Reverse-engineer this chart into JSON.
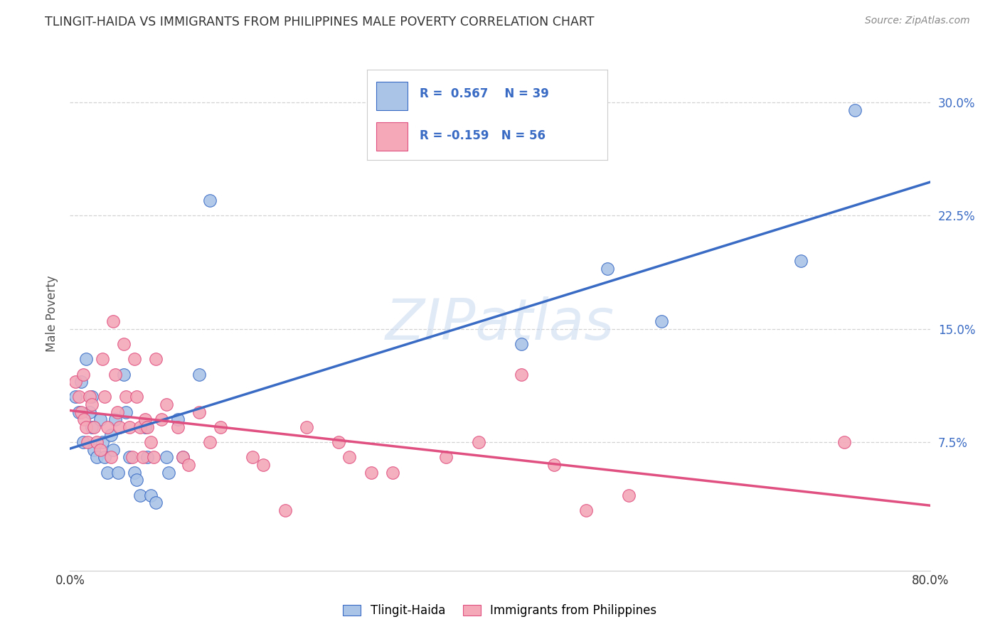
{
  "title": "TLINGIT-HAIDA VS IMMIGRANTS FROM PHILIPPINES MALE POVERTY CORRELATION CHART",
  "source": "Source: ZipAtlas.com",
  "ylabel": "Male Poverty",
  "xlim": [
    0.0,
    0.8
  ],
  "ylim": [
    -0.01,
    0.33
  ],
  "yticks_right": [
    0.075,
    0.15,
    0.225,
    0.3
  ],
  "ytick_right_labels": [
    "7.5%",
    "15.0%",
    "22.5%",
    "30.0%"
  ],
  "background_color": "#ffffff",
  "grid_color": "#c8c8c8",
  "series1_color": "#aac4e8",
  "series2_color": "#f4a8b8",
  "line1_color": "#3a6bc4",
  "line2_color": "#e05080",
  "R1": 0.567,
  "N1": 39,
  "R2": -0.159,
  "N2": 56,
  "legend_label1": "Tlingit-Haida",
  "legend_label2": "Immigrants from Philippines",
  "tlingit_x": [
    0.005,
    0.008,
    0.01,
    0.012,
    0.015,
    0.018,
    0.02,
    0.02,
    0.022,
    0.025,
    0.028,
    0.03,
    0.032,
    0.035,
    0.038,
    0.04,
    0.042,
    0.045,
    0.05,
    0.052,
    0.055,
    0.06,
    0.062,
    0.065,
    0.07,
    0.072,
    0.075,
    0.08,
    0.09,
    0.092,
    0.1,
    0.105,
    0.12,
    0.13,
    0.42,
    0.5,
    0.55,
    0.68,
    0.73
  ],
  "tlingit_y": [
    0.105,
    0.095,
    0.115,
    0.075,
    0.13,
    0.095,
    0.105,
    0.085,
    0.07,
    0.065,
    0.09,
    0.075,
    0.065,
    0.055,
    0.08,
    0.07,
    0.09,
    0.055,
    0.12,
    0.095,
    0.065,
    0.055,
    0.05,
    0.04,
    0.085,
    0.065,
    0.04,
    0.035,
    0.065,
    0.055,
    0.09,
    0.065,
    0.12,
    0.235,
    0.14,
    0.19,
    0.155,
    0.195,
    0.295
  ],
  "phil_x": [
    0.005,
    0.008,
    0.01,
    0.012,
    0.013,
    0.015,
    0.016,
    0.018,
    0.02,
    0.022,
    0.025,
    0.028,
    0.03,
    0.032,
    0.035,
    0.038,
    0.04,
    0.042,
    0.044,
    0.046,
    0.05,
    0.052,
    0.055,
    0.058,
    0.06,
    0.062,
    0.065,
    0.068,
    0.07,
    0.072,
    0.075,
    0.078,
    0.08,
    0.085,
    0.09,
    0.1,
    0.105,
    0.11,
    0.12,
    0.13,
    0.14,
    0.17,
    0.18,
    0.2,
    0.22,
    0.25,
    0.26,
    0.28,
    0.3,
    0.35,
    0.38,
    0.42,
    0.45,
    0.48,
    0.52,
    0.72
  ],
  "phil_y": [
    0.115,
    0.105,
    0.095,
    0.12,
    0.09,
    0.085,
    0.075,
    0.105,
    0.1,
    0.085,
    0.075,
    0.07,
    0.13,
    0.105,
    0.085,
    0.065,
    0.155,
    0.12,
    0.095,
    0.085,
    0.14,
    0.105,
    0.085,
    0.065,
    0.13,
    0.105,
    0.085,
    0.065,
    0.09,
    0.085,
    0.075,
    0.065,
    0.13,
    0.09,
    0.1,
    0.085,
    0.065,
    0.06,
    0.095,
    0.075,
    0.085,
    0.065,
    0.06,
    0.03,
    0.085,
    0.075,
    0.065,
    0.055,
    0.055,
    0.065,
    0.075,
    0.12,
    0.06,
    0.03,
    0.04,
    0.075
  ]
}
